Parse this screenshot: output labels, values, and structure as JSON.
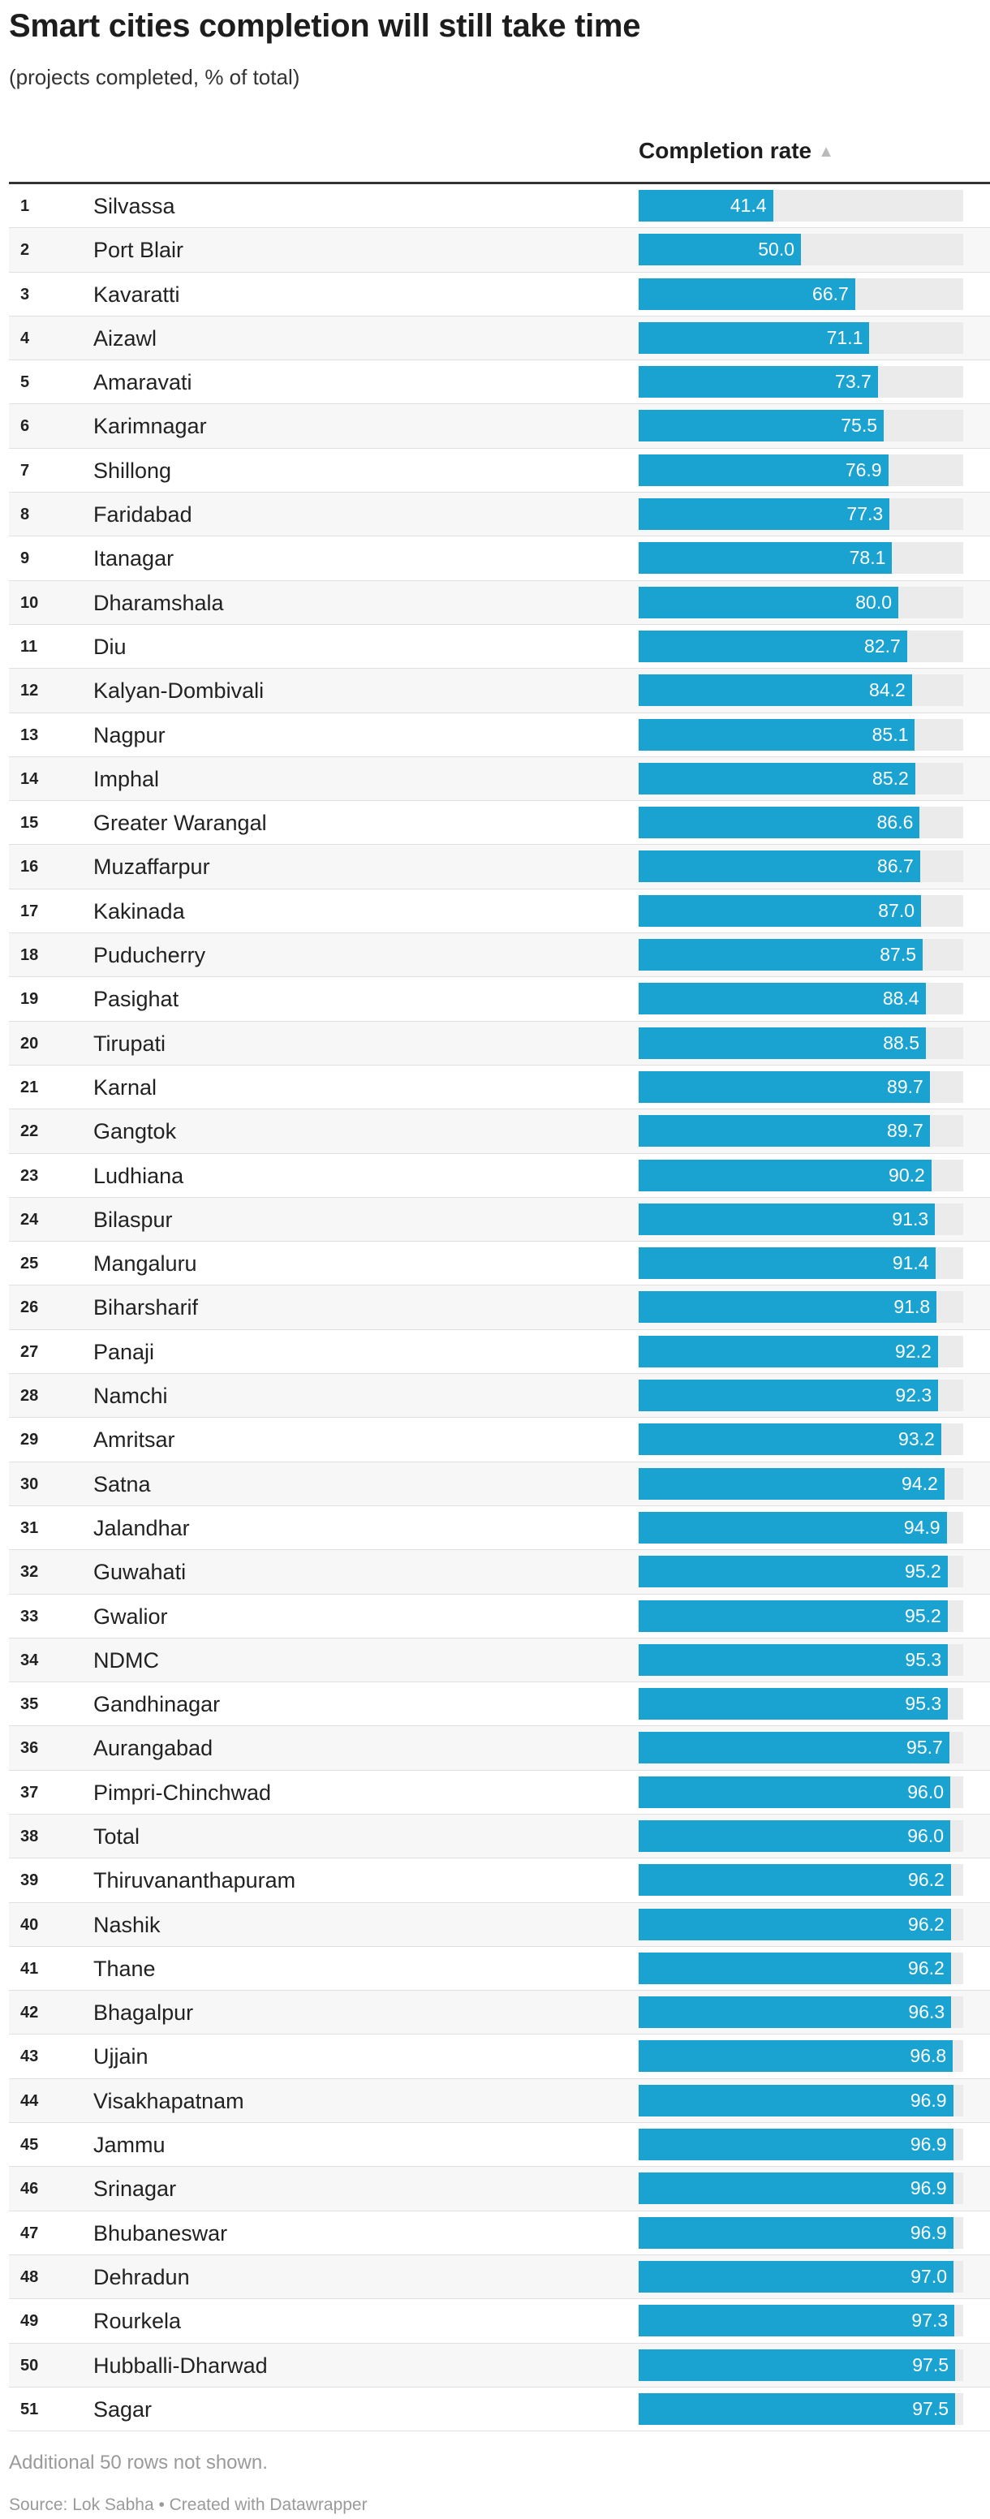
{
  "title": "Smart cities completion will still take time",
  "subtitle": "(projects completed, % of total)",
  "column_header": "Completion rate",
  "sort_icon": "▲",
  "footnote": "Additional 50 rows not shown.",
  "source": "Source: Lok Sabha • Created with Datawrapper",
  "colors": {
    "bar": "#1aa3d1",
    "track": "#ebebeb"
  },
  "chart_data": {
    "type": "table",
    "max": 100,
    "rows": [
      {
        "rank": "1",
        "city": "Silvassa",
        "value": 41.4
      },
      {
        "rank": "2",
        "city": "Port Blair",
        "value": 50.0
      },
      {
        "rank": "3",
        "city": "Kavaratti",
        "value": 66.7
      },
      {
        "rank": "4",
        "city": "Aizawl",
        "value": 71.1
      },
      {
        "rank": "5",
        "city": "Amaravati",
        "value": 73.7
      },
      {
        "rank": "6",
        "city": "Karimnagar",
        "value": 75.5
      },
      {
        "rank": "7",
        "city": "Shillong",
        "value": 76.9
      },
      {
        "rank": "8",
        "city": "Faridabad",
        "value": 77.3
      },
      {
        "rank": "9",
        "city": "Itanagar",
        "value": 78.1
      },
      {
        "rank": "10",
        "city": "Dharamshala",
        "value": 80.0
      },
      {
        "rank": "11",
        "city": "Diu",
        "value": 82.7
      },
      {
        "rank": "12",
        "city": "Kalyan-Dombivali",
        "value": 84.2
      },
      {
        "rank": "13",
        "city": "Nagpur",
        "value": 85.1
      },
      {
        "rank": "14",
        "city": "Imphal",
        "value": 85.2
      },
      {
        "rank": "15",
        "city": "Greater Warangal",
        "value": 86.6
      },
      {
        "rank": "16",
        "city": "Muzaffarpur",
        "value": 86.7
      },
      {
        "rank": "17",
        "city": "Kakinada",
        "value": 87.0
      },
      {
        "rank": "18",
        "city": "Puducherry",
        "value": 87.5
      },
      {
        "rank": "19",
        "city": "Pasighat",
        "value": 88.4
      },
      {
        "rank": "20",
        "city": "Tirupati",
        "value": 88.5
      },
      {
        "rank": "21",
        "city": "Karnal",
        "value": 89.7
      },
      {
        "rank": "22",
        "city": "Gangtok",
        "value": 89.7
      },
      {
        "rank": "23",
        "city": "Ludhiana",
        "value": 90.2
      },
      {
        "rank": "24",
        "city": "Bilaspur",
        "value": 91.3
      },
      {
        "rank": "25",
        "city": "Mangaluru",
        "value": 91.4
      },
      {
        "rank": "26",
        "city": "Biharsharif",
        "value": 91.8
      },
      {
        "rank": "27",
        "city": "Panaji",
        "value": 92.2
      },
      {
        "rank": "28",
        "city": "Namchi",
        "value": 92.3
      },
      {
        "rank": "29",
        "city": "Amritsar",
        "value": 93.2
      },
      {
        "rank": "30",
        "city": "Satna",
        "value": 94.2
      },
      {
        "rank": "31",
        "city": "Jalandhar",
        "value": 94.9
      },
      {
        "rank": "32",
        "city": "Guwahati",
        "value": 95.2
      },
      {
        "rank": "33",
        "city": "Gwalior",
        "value": 95.2
      },
      {
        "rank": "34",
        "city": "NDMC",
        "value": 95.3
      },
      {
        "rank": "35",
        "city": "Gandhinagar",
        "value": 95.3
      },
      {
        "rank": "36",
        "city": "Aurangabad",
        "value": 95.7
      },
      {
        "rank": "37",
        "city": "Pimpri-Chinchwad",
        "value": 96.0
      },
      {
        "rank": "38",
        "city": "Total",
        "value": 96.0
      },
      {
        "rank": "39",
        "city": "Thiruvananthapuram",
        "value": 96.2
      },
      {
        "rank": "40",
        "city": "Nashik",
        "value": 96.2
      },
      {
        "rank": "41",
        "city": "Thane",
        "value": 96.2
      },
      {
        "rank": "42",
        "city": "Bhagalpur",
        "value": 96.3
      },
      {
        "rank": "43",
        "city": "Ujjain",
        "value": 96.8
      },
      {
        "rank": "44",
        "city": "Visakhapatnam",
        "value": 96.9
      },
      {
        "rank": "45",
        "city": "Jammu",
        "value": 96.9
      },
      {
        "rank": "46",
        "city": "Srinagar",
        "value": 96.9
      },
      {
        "rank": "47",
        "city": "Bhubaneswar",
        "value": 96.9
      },
      {
        "rank": "48",
        "city": "Dehradun",
        "value": 97.0
      },
      {
        "rank": "49",
        "city": "Rourkela",
        "value": 97.3
      },
      {
        "rank": "50",
        "city": "Hubballi-Dharwad",
        "value": 97.5
      },
      {
        "rank": "51",
        "city": "Sagar",
        "value": 97.5
      }
    ]
  }
}
